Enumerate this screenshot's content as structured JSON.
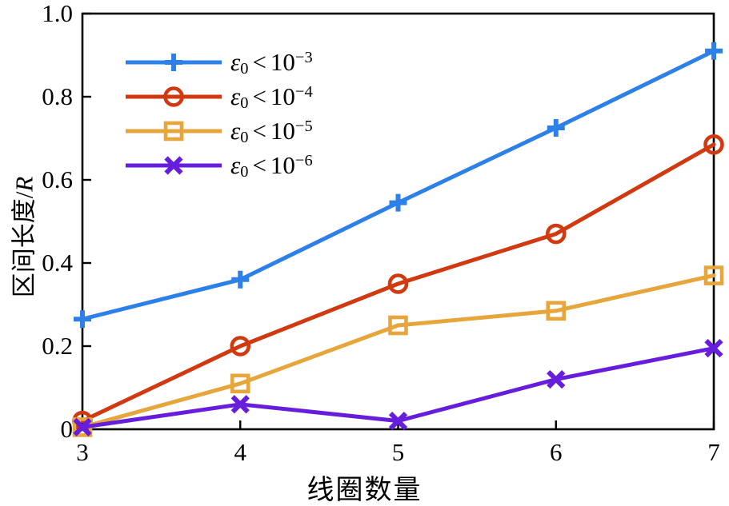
{
  "figure": {
    "background": "#ffffff",
    "axis_color": "#000000"
  },
  "chart_data": {
    "type": "line",
    "title": "",
    "xlabel": "线圈数量",
    "ylabel": "区间长度/R",
    "ylabel_prefix": "区间长度/",
    "ylabel_var": "R",
    "xlim": [
      3,
      7
    ],
    "ylim": [
      0,
      1.0
    ],
    "grid": false,
    "legend_position": "upper-left-inside",
    "x": [
      3,
      4,
      5,
      6,
      7
    ],
    "xtick_labels": [
      "3",
      "4",
      "5",
      "6",
      "7"
    ],
    "ytick_values": [
      0,
      0.2,
      0.4,
      0.6,
      0.8,
      1.0
    ],
    "ytick_labels": [
      "0",
      "0.2",
      "0.4",
      "0.6",
      "0.8",
      "1.0"
    ],
    "series": [
      {
        "name": "ε₀<10⁻³",
        "marker": "plus",
        "color": "#2C80E8",
        "values": [
          0.265,
          0.36,
          0.545,
          0.725,
          0.91
        ],
        "label_parts": {
          "var": "ε",
          "sub": "0",
          "op": "<",
          "base": "10",
          "exp": "−3"
        }
      },
      {
        "name": "ε₀<10⁻⁴",
        "marker": "circle",
        "color": "#D13A10",
        "values": [
          0.02,
          0.2,
          0.35,
          0.47,
          0.685
        ],
        "label_parts": {
          "var": "ε",
          "sub": "0",
          "op": "<",
          "base": "10",
          "exp": "−4"
        }
      },
      {
        "name": "ε₀<10⁻⁵",
        "marker": "square",
        "color": "#E6A63C",
        "values": [
          0.005,
          0.11,
          0.25,
          0.285,
          0.37
        ],
        "label_parts": {
          "var": "ε",
          "sub": "0",
          "op": "<",
          "base": "10",
          "exp": "−5"
        }
      },
      {
        "name": "ε₀<10⁻⁶",
        "marker": "x",
        "color": "#671DDC",
        "values": [
          0.005,
          0.06,
          0.02,
          0.12,
          0.195
        ],
        "label_parts": {
          "var": "ε",
          "sub": "0",
          "op": "<",
          "base": "10",
          "exp": "−6"
        }
      }
    ]
  }
}
